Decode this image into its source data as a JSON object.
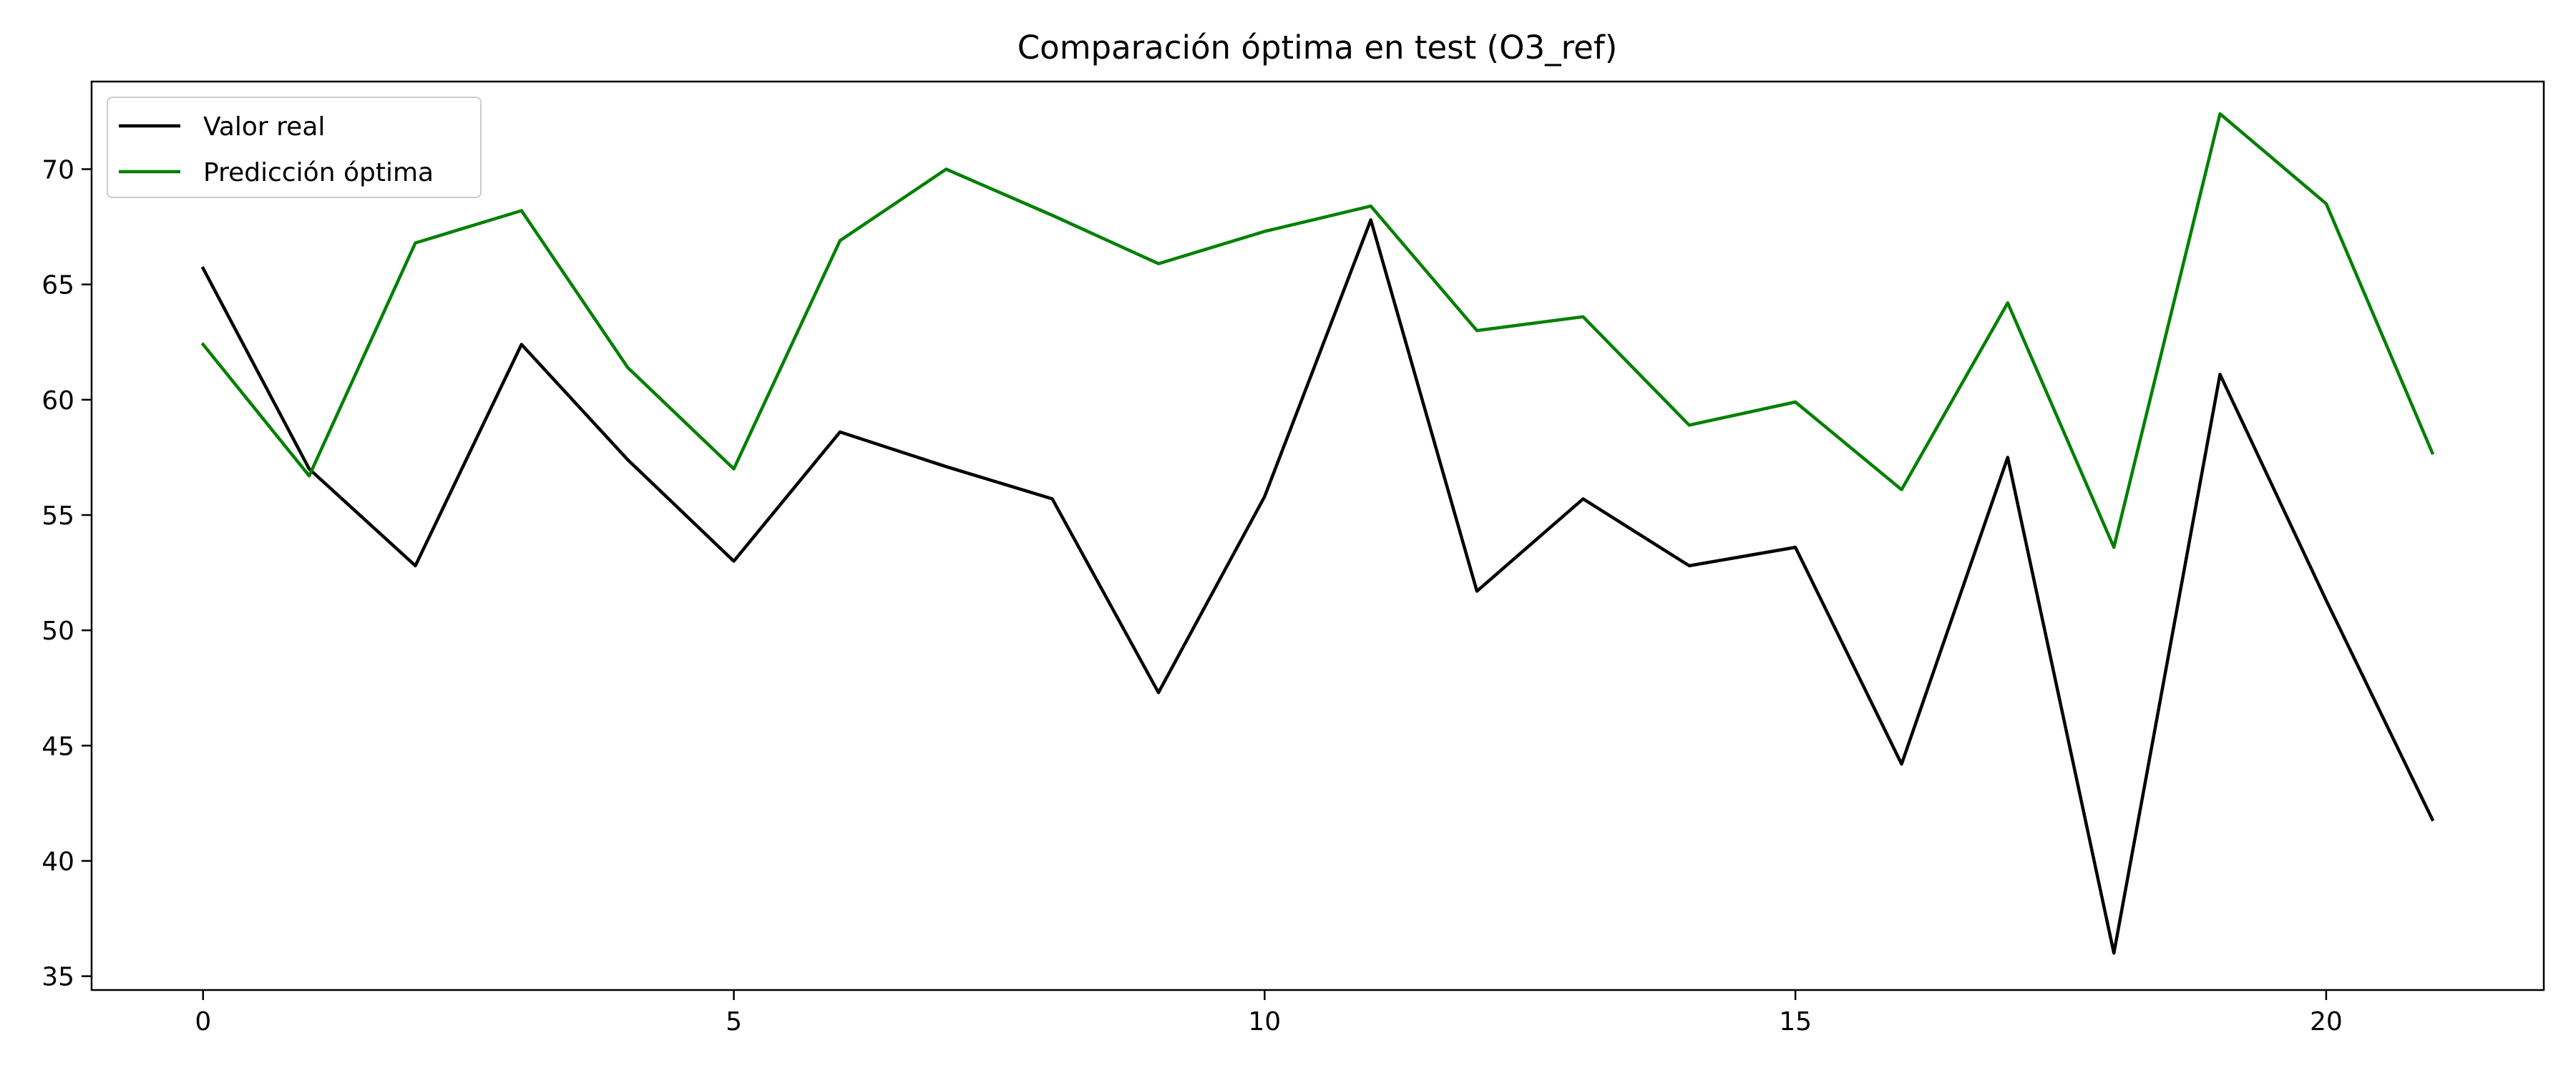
{
  "chart_data": {
    "type": "line",
    "title": "Comparación óptima en test (O3_ref)",
    "xlabel": "",
    "ylabel": "",
    "x": [
      0,
      1,
      2,
      3,
      4,
      5,
      6,
      7,
      8,
      9,
      10,
      11,
      12,
      13,
      14,
      15,
      16,
      17,
      18,
      19,
      20,
      21
    ],
    "xlim": [
      -1.05,
      22.05
    ],
    "ylim": [
      34.4,
      73.8
    ],
    "xticks": [
      0,
      5,
      10,
      15,
      20
    ],
    "yticks": [
      35,
      40,
      45,
      50,
      55,
      60,
      65,
      70
    ],
    "grid": false,
    "legend_position": "top-left",
    "series": [
      {
        "name": "Valor real",
        "color": "#000000",
        "values": [
          65.7,
          57.0,
          52.8,
          62.4,
          57.4,
          53.0,
          58.6,
          57.1,
          55.7,
          47.3,
          55.8,
          67.8,
          51.7,
          55.7,
          52.8,
          53.6,
          44.2,
          57.5,
          36.0,
          61.1,
          51.3,
          41.8
        ]
      },
      {
        "name": "Predicción óptima",
        "color": "#008000",
        "values": [
          62.4,
          56.7,
          66.8,
          68.2,
          61.4,
          57.0,
          66.9,
          70.0,
          68.0,
          65.9,
          67.3,
          68.4,
          63.0,
          63.6,
          58.9,
          59.9,
          56.1,
          64.2,
          53.6,
          72.4,
          68.5,
          57.7
        ]
      }
    ]
  }
}
